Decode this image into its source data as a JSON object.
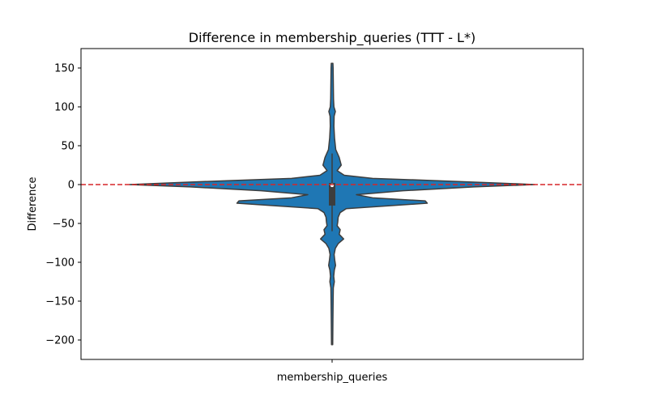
{
  "chart_data": {
    "type": "violin",
    "title": "Difference in membership_queries (TTT - L*)",
    "xlabel": "",
    "ylabel": "Difference",
    "categories": [
      "membership_queries"
    ],
    "ylim": [
      -225,
      175
    ],
    "yticks": [
      150,
      100,
      50,
      0,
      -50,
      -100,
      -150,
      -200
    ],
    "grid": false,
    "legend": "none",
    "reference_line": {
      "y": 0,
      "color": "#d62728",
      "style": "dashed"
    },
    "violin": {
      "category": "membership_queries",
      "fill_color": "#1f77b4",
      "edge_color": "#3d3d3d",
      "data_min": -206,
      "data_max": 156,
      "box": {
        "q1": -27,
        "median": -1,
        "q3": 2
      },
      "whiskers": {
        "low": -60,
        "high": 40
      },
      "density_profile": [
        {
          "y": 156,
          "d": 0.004
        },
        {
          "y": 150,
          "d": 0.005
        },
        {
          "y": 130,
          "d": 0.006
        },
        {
          "y": 110,
          "d": 0.007
        },
        {
          "y": 100,
          "d": 0.009
        },
        {
          "y": 94,
          "d": 0.016
        },
        {
          "y": 88,
          "d": 0.01
        },
        {
          "y": 75,
          "d": 0.009
        },
        {
          "y": 60,
          "d": 0.012
        },
        {
          "y": 45,
          "d": 0.018
        },
        {
          "y": 35,
          "d": 0.035
        },
        {
          "y": 25,
          "d": 0.045
        },
        {
          "y": 18,
          "d": 0.025
        },
        {
          "y": 12,
          "d": 0.06
        },
        {
          "y": 8,
          "d": 0.2
        },
        {
          "y": 5,
          "d": 0.52
        },
        {
          "y": 2,
          "d": 0.82
        },
        {
          "y": 0,
          "d": 1.0
        },
        {
          "y": -3,
          "d": 0.7
        },
        {
          "y": -8,
          "d": 0.35
        },
        {
          "y": -13,
          "d": 0.12
        },
        {
          "y": -17,
          "d": 0.2
        },
        {
          "y": -21,
          "d": 0.46
        },
        {
          "y": -24,
          "d": 0.47
        },
        {
          "y": -27,
          "d": 0.3
        },
        {
          "y": -31,
          "d": 0.07
        },
        {
          "y": -36,
          "d": 0.04
        },
        {
          "y": -42,
          "d": 0.03
        },
        {
          "y": -48,
          "d": 0.028
        },
        {
          "y": -53,
          "d": 0.025
        },
        {
          "y": -58,
          "d": 0.04
        },
        {
          "y": -64,
          "d": 0.035
        },
        {
          "y": -70,
          "d": 0.057
        },
        {
          "y": -76,
          "d": 0.03
        },
        {
          "y": -82,
          "d": 0.016
        },
        {
          "y": -90,
          "d": 0.01
        },
        {
          "y": -97,
          "d": 0.013
        },
        {
          "y": -104,
          "d": 0.017
        },
        {
          "y": -110,
          "d": 0.011
        },
        {
          "y": -118,
          "d": 0.008
        },
        {
          "y": -125,
          "d": 0.011
        },
        {
          "y": -133,
          "d": 0.006
        },
        {
          "y": -150,
          "d": 0.005
        },
        {
          "y": -175,
          "d": 0.004
        },
        {
          "y": -206,
          "d": 0.003
        }
      ]
    }
  }
}
